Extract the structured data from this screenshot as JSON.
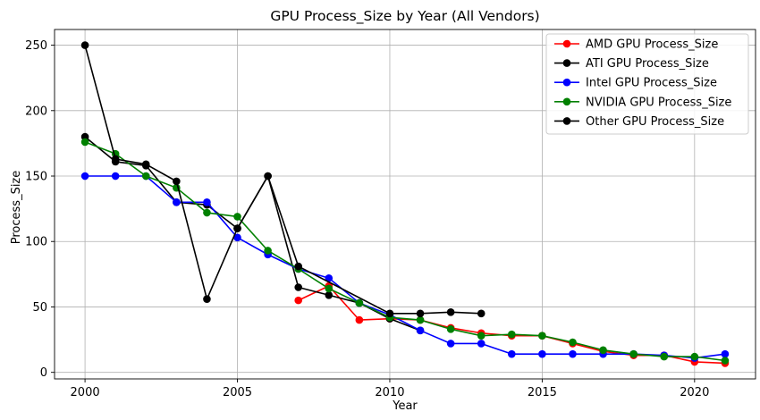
{
  "chart_data": {
    "type": "line",
    "title": "GPU Process_Size by Year (All Vendors)",
    "xlabel": "Year",
    "ylabel": "Process_Size",
    "xlim": [
      1999.0,
      2022.0
    ],
    "ylim": [
      -5,
      262
    ],
    "xticks": [
      2000,
      2005,
      2010,
      2015,
      2020
    ],
    "yticks": [
      0,
      50,
      100,
      150,
      200,
      250
    ],
    "grid": true,
    "legend_position": "top-right",
    "series": [
      {
        "name": "AMD GPU Process_Size",
        "color": "#ff0000",
        "x": [
          2007,
          2008,
          2009,
          2010,
          2011,
          2012,
          2013,
          2014,
          2015,
          2016,
          2017,
          2018,
          2019,
          2020,
          2021
        ],
        "y": [
          55,
          66,
          40,
          41,
          40,
          34,
          30,
          28,
          28,
          22,
          16,
          13,
          13,
          8,
          7
        ]
      },
      {
        "name": "ATI GPU Process_Size",
        "color": "#000000",
        "x": [
          2000,
          2001,
          2002,
          2003,
          2004,
          2005,
          2006,
          2007,
          2008,
          2009,
          2010,
          2011
        ],
        "y": [
          180,
          161,
          158,
          130,
          128,
          110,
          150,
          65,
          59,
          53,
          41,
          32
        ]
      },
      {
        "name": "Intel GPU Process_Size",
        "color": "#0000ff",
        "x": [
          2000,
          2001,
          2002,
          2003,
          2004,
          2005,
          2006,
          2007,
          2008,
          2009,
          2010,
          2011,
          2012,
          2013,
          2014,
          2015,
          2016,
          2017,
          2018,
          2019,
          2020,
          2021
        ],
        "y": [
          150,
          150,
          150,
          130,
          130,
          103,
          90,
          79,
          72,
          53,
          44,
          32,
          22,
          22,
          14,
          14,
          14,
          14,
          14,
          13,
          11,
          14
        ]
      },
      {
        "name": "NVIDIA GPU Process_Size",
        "color": "#008000",
        "x": [
          2000,
          2001,
          2002,
          2003,
          2004,
          2005,
          2006,
          2007,
          2008,
          2009,
          2010,
          2011,
          2012,
          2013,
          2014,
          2015,
          2016,
          2017,
          2018,
          2019,
          2020,
          2021
        ],
        "y": [
          176,
          167,
          150,
          141,
          122,
          119,
          93,
          79,
          64,
          53,
          42,
          40,
          33,
          28,
          29,
          28,
          23,
          17,
          14,
          12,
          12,
          9
        ]
      },
      {
        "name": "Other GPU Process_Size",
        "color": "#000000",
        "x": [
          2000,
          2001,
          2002,
          2003,
          2004,
          2005,
          2006,
          2007,
          2010,
          2011,
          2012,
          2013
        ],
        "y": [
          250,
          163,
          159,
          146,
          56,
          110,
          150,
          81,
          45,
          45,
          46,
          45
        ]
      }
    ]
  }
}
